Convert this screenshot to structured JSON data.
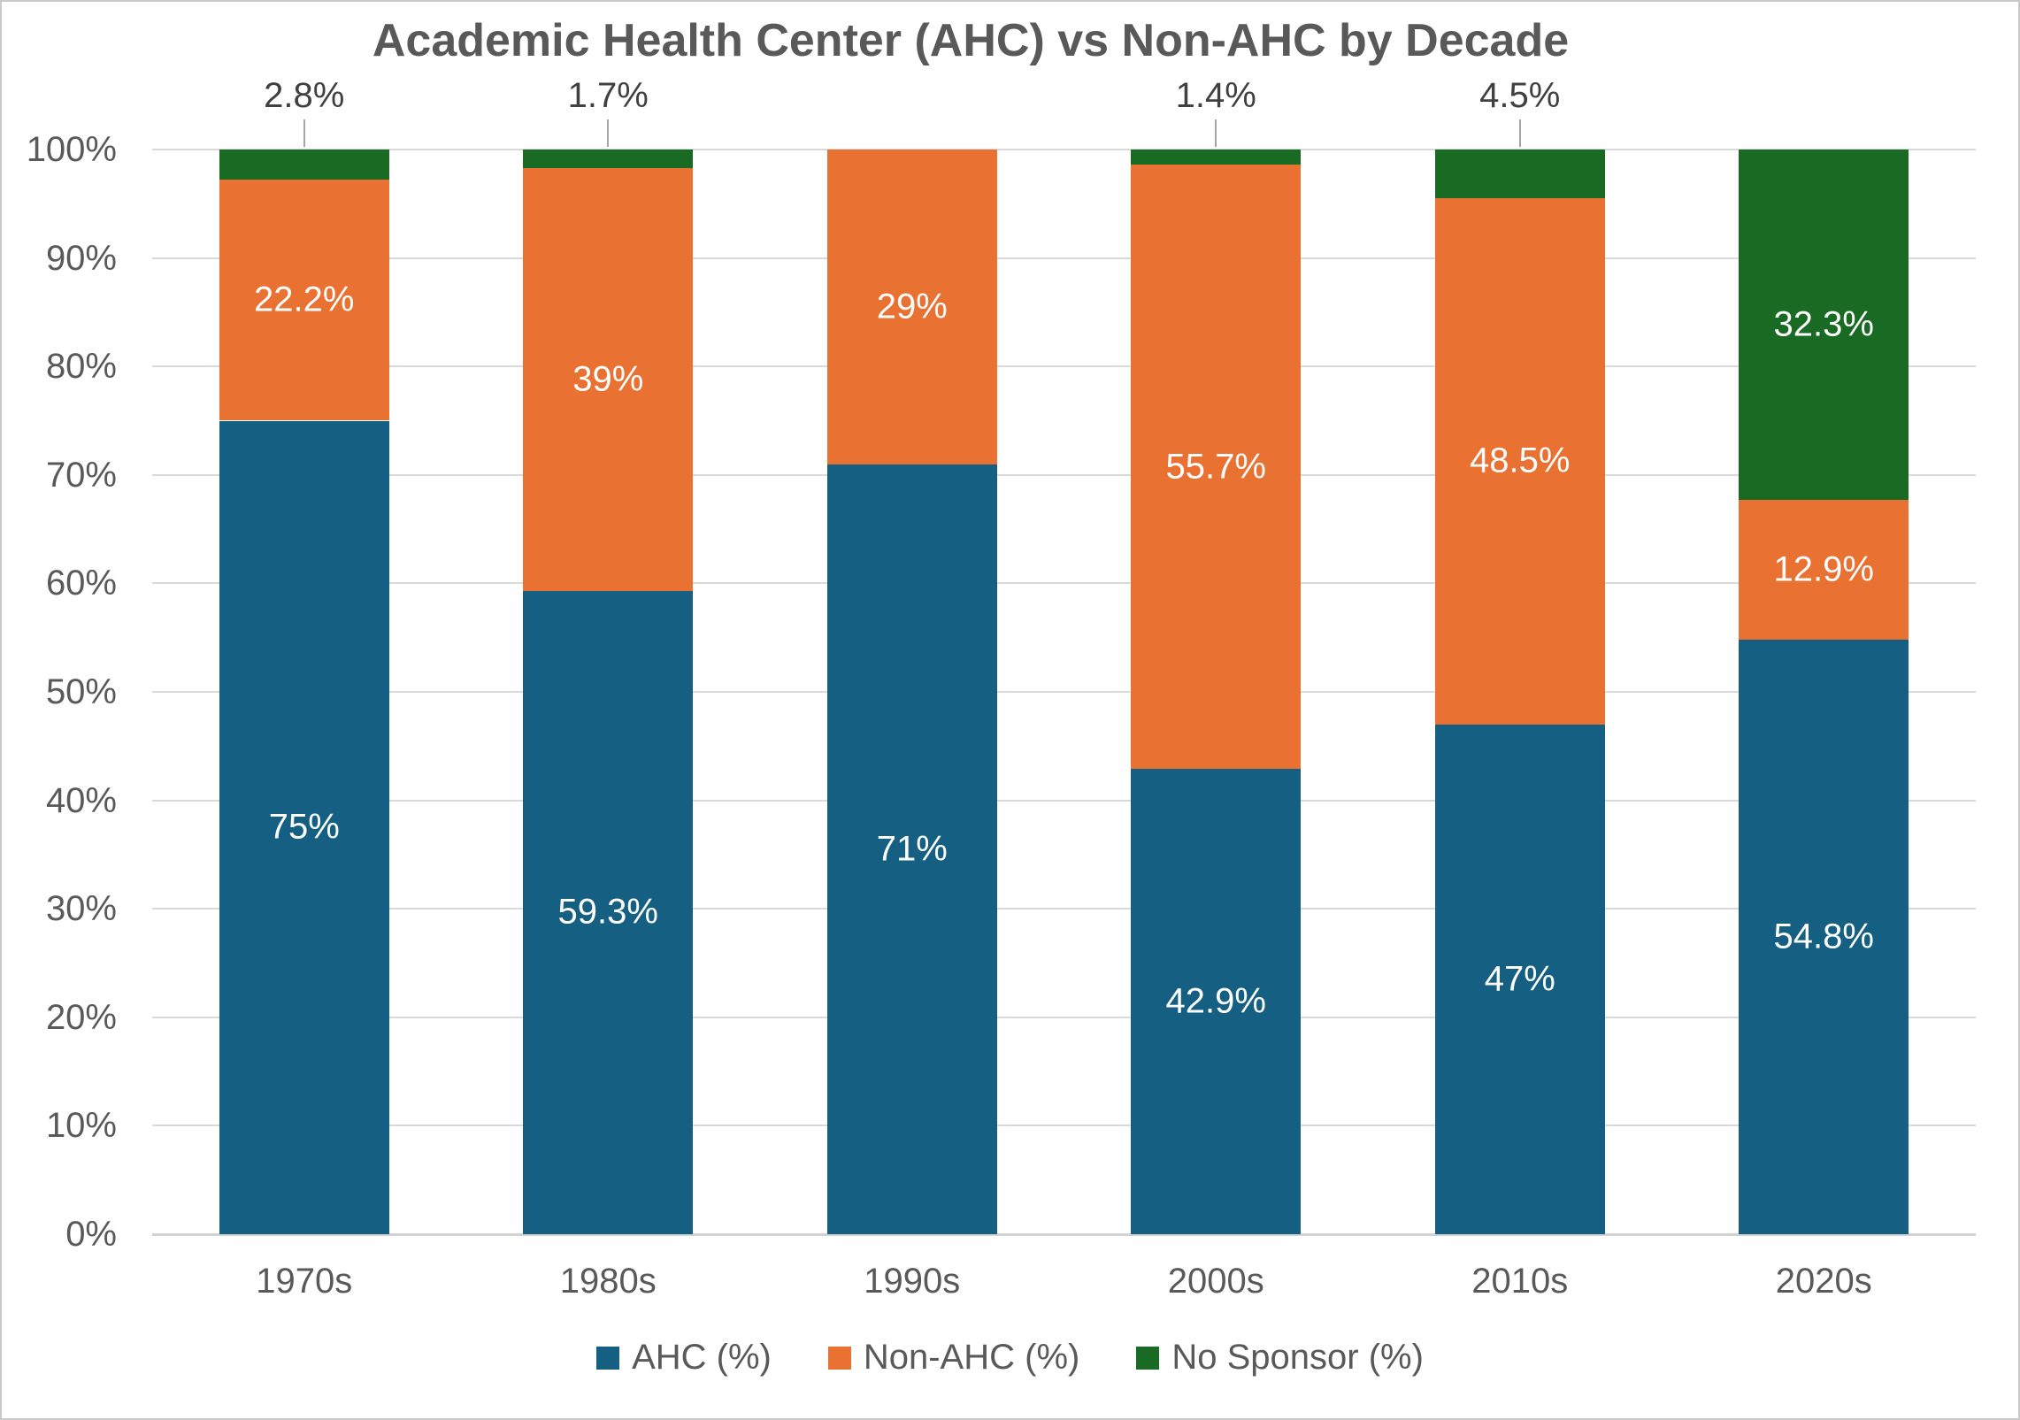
{
  "chart_data": {
    "type": "bar",
    "stacked": true,
    "title": "Academic Health Center (AHC) vs Non-AHC by Decade",
    "categories": [
      "1970s",
      "1980s",
      "1990s",
      "2000s",
      "2010s",
      "2020s"
    ],
    "series": [
      {
        "name": "AHC (%)",
        "key": "ahc",
        "color": "#156082",
        "values": [
          75,
          59.3,
          71,
          42.9,
          47,
          54.8
        ],
        "labels": [
          "75%",
          "59.3%",
          "71%",
          "42.9%",
          "47%",
          "54.8%"
        ],
        "placements": [
          "inside",
          "inside",
          "inside",
          "inside",
          "inside",
          "inside"
        ]
      },
      {
        "name": "Non-AHC (%)",
        "key": "non-ahc",
        "color": "#E97132",
        "values": [
          22.2,
          39,
          29,
          55.7,
          48.5,
          12.9
        ],
        "labels": [
          "22.2%",
          "39%",
          "29%",
          "55.7%",
          "48.5%",
          "12.9%"
        ],
        "placements": [
          "inside",
          "inside",
          "inside",
          "inside",
          "inside",
          "inside"
        ]
      },
      {
        "name": "No Sponsor (%)",
        "key": "no-sponsor",
        "color": "#196B24",
        "values": [
          2.8,
          1.7,
          0,
          1.4,
          4.5,
          32.3
        ],
        "labels": [
          "2.8%",
          "1.7%",
          "",
          "1.4%",
          "4.5%",
          "32.3%"
        ],
        "placements": [
          "callout",
          "callout",
          "none",
          "callout",
          "callout",
          "inside"
        ]
      }
    ],
    "xlabel": "",
    "ylabel": "",
    "y_axis": {
      "min": 0,
      "max": 100,
      "step": 10,
      "tick_labels": [
        "0%",
        "10%",
        "20%",
        "30%",
        "40%",
        "50%",
        "60%",
        "70%",
        "80%",
        "90%",
        "100%"
      ]
    },
    "grid": true,
    "legend_position": "bottom",
    "legend": [
      {
        "label": "AHC (%)",
        "color": "#156082"
      },
      {
        "label": "Non-AHC (%)",
        "color": "#E97132"
      },
      {
        "label": "No Sponsor (%)",
        "color": "#196B24"
      }
    ],
    "label_text_color_inside": "#FFFFFF",
    "label_text_color_callout": "#404040"
  }
}
